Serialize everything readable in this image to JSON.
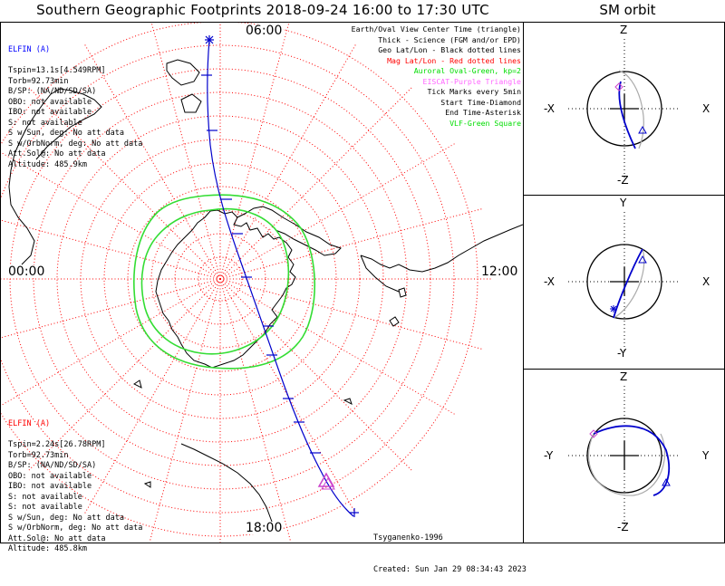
{
  "header": {
    "title": "Southern Geographic Footprints 2018-09-24 16:00 to 17:30 UTC",
    "sm_title": "SM orbit"
  },
  "time_labels": {
    "top": "06:00",
    "left": "00:00",
    "right": "12:00",
    "bottom": "18:00"
  },
  "elfin_a_block": {
    "name": "ELFIN (A)",
    "color": "#0000ff",
    "lines": [
      "Tspin=13.1s[4.549RPM]",
      "Torb=92.73min",
      "B/SP: (NA/ND/SD/SA)",
      "OBO: not available",
      "IBO: not available",
      "S: not available",
      "S w/Sun, deg: No att data",
      "S w/OrbNorm, deg: No att data",
      "Att.Sol@: No att data",
      "Altitude: 485.9km"
    ]
  },
  "elfin_b_block": {
    "name": "ELFIN (A)",
    "color": "#ff0000",
    "lines": [
      "Tspin=2.24s[26.78RPM]",
      "Torb=92.73min",
      "B/SP: (NA/ND/SD/SA)",
      "OBO: not available",
      "IBO: not available",
      "S: not available",
      "S: not available",
      "S w/Sun, deg: No att data",
      "S w/OrbNorm, deg: No att data",
      "Att.Sol@: No att data",
      "Altitude: 485.8km"
    ]
  },
  "legend": [
    {
      "text": "Earth/Oval View Center Time (triangle)",
      "color": "#000000"
    },
    {
      "text": "Thick - Science (FGM and/or EPD)",
      "color": "#000000"
    },
    {
      "text": "Geo Lat/Lon - Black dotted lines",
      "color": "#000000"
    },
    {
      "text": "Mag Lat/Lon - Red dotted lines",
      "color": "#ff0000"
    },
    {
      "text": "Auroral Oval-Green, kp=2",
      "color": "#00dd00"
    },
    {
      "text": "EISCAT-Purple Triangle",
      "color": "#ff66ff"
    },
    {
      "text": "Tick Marks every 5min",
      "color": "#000000"
    },
    {
      "text": "Start Time-Diamond",
      "color": "#000000"
    },
    {
      "text": "End Time-Asterisk",
      "color": "#000000"
    },
    {
      "text": "VLF-Green Square",
      "color": "#00dd00"
    }
  ],
  "footer": {
    "model": "Tsyganenko-1996",
    "created": "Created: Sun Jan 29 08:34:43 2023"
  },
  "sm_panels": [
    {
      "top": "Z",
      "bottom": "-Z",
      "left": "-X",
      "right": "X"
    },
    {
      "top": "Y",
      "bottom": "-Y",
      "left": "-X",
      "right": "X"
    },
    {
      "top": "Z",
      "bottom": "-Z",
      "left": "-Y",
      "right": "Y"
    }
  ],
  "colors": {
    "orbit": "#0000cc",
    "mag_grid": "#ff0000",
    "oval": "#33dd33",
    "eiscat": "#cc44cc"
  }
}
